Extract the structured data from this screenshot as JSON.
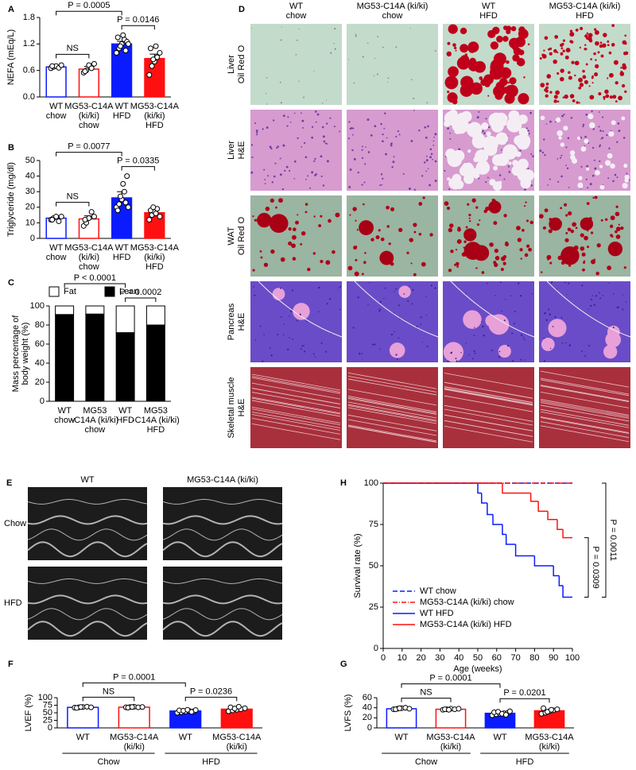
{
  "chart_data": [
    {
      "type": "bar",
      "panel": "A",
      "ylabel": "NEFA (mEq/L)",
      "categories": [
        [
          "WT",
          "chow"
        ],
        [
          "MG53-C14A",
          "(ki/ki)",
          "chow"
        ],
        [
          "WT",
          "HFD"
        ],
        [
          "MG53-C14A",
          "(ki/ki)",
          "HFD"
        ]
      ],
      "values": [
        0.68,
        0.63,
        1.2,
        0.87
      ],
      "errors": [
        0.03,
        0.06,
        0.06,
        0.1
      ],
      "points": [
        [
          0.65,
          0.68,
          0.7,
          0.66,
          0.72,
          0.7
        ],
        [
          0.55,
          0.6,
          0.72,
          0.65,
          0.75,
          0.58
        ],
        [
          1.0,
          1.1,
          1.2,
          1.3,
          1.25,
          1.35,
          1.15,
          1.4,
          1.05,
          1.2
        ],
        [
          0.5,
          0.7,
          0.8,
          0.9,
          1.0,
          1.1,
          0.85,
          1.15
        ]
      ],
      "fills": [
        "#ffffff",
        "#ffffff",
        "#0a1cff",
        "#ff1010"
      ],
      "edges": [
        "#0a1cff",
        "#ff1010",
        "#0a1cff",
        "#ff1010"
      ],
      "ylim": [
        0,
        1.8
      ],
      "yticks": [
        {
          "value": 0,
          "label": "0.0"
        },
        0.6,
        1.2,
        1.8
      ],
      "brackets": [
        {
          "from": 0,
          "to": 2,
          "label": "P = 0.0005"
        },
        {
          "from": 0,
          "to": 1,
          "label": "NS"
        },
        {
          "from": 2,
          "to": 3,
          "label": "P = 0.0146"
        }
      ]
    },
    {
      "type": "bar",
      "panel": "B",
      "ylabel": "Triglyceride (mg/dl)",
      "categories": [
        [
          "WT",
          "chow"
        ],
        [
          "MG53-C14A",
          "(ki/ki)",
          "chow"
        ],
        [
          "WT",
          "HFD"
        ],
        [
          "MG53-C14A",
          "(ki/ki)",
          "HFD"
        ]
      ],
      "values": [
        13,
        12.5,
        26,
        16.5
      ],
      "errors": [
        1,
        2,
        4,
        2
      ],
      "points": [
        [
          12,
          13,
          14,
          11,
          14,
          12
        ],
        [
          8,
          10,
          13,
          17,
          14,
          12
        ],
        [
          20,
          22,
          25,
          30,
          40,
          18,
          27,
          35,
          23,
          20
        ],
        [
          12,
          15,
          17,
          19,
          14,
          18,
          20,
          16
        ]
      ],
      "fills": [
        "#ffffff",
        "#ffffff",
        "#0a1cff",
        "#ff1010"
      ],
      "edges": [
        "#0a1cff",
        "#ff1010",
        "#0a1cff",
        "#ff1010"
      ],
      "ylim": [
        0,
        50
      ],
      "yticks": [
        0,
        10,
        20,
        30,
        40,
        50
      ],
      "brackets": [
        {
          "from": 0,
          "to": 2,
          "label": "P = 0.0077"
        },
        {
          "from": 0,
          "to": 1,
          "label": "NS"
        },
        {
          "from": 2,
          "to": 3,
          "label": "P = 0.0335"
        }
      ]
    },
    {
      "type": "stacked_bar",
      "panel": "C",
      "ylabel": [
        "Mass percentage of",
        "body weight (%)"
      ],
      "categories": [
        [
          "WT",
          "chow"
        ],
        [
          "MG53",
          "-C14A (ki/ki)",
          "chow"
        ],
        [
          "WT",
          "HFD"
        ],
        [
          "MG53",
          "-C14A (ki/ki)",
          "HFD"
        ]
      ],
      "series": [
        {
          "name": "Lean",
          "color": "#000000",
          "values": [
            91,
            91.5,
            72,
            80
          ],
          "errors": [
            0.8,
            0.8,
            2,
            1.5
          ]
        },
        {
          "name": "Fat",
          "color": "#ffffff",
          "values": [
            9,
            8.5,
            28,
            20
          ]
        }
      ],
      "ylim": [
        0,
        100
      ],
      "yticks": [
        0,
        20,
        40,
        60,
        80,
        100
      ],
      "brackets": [
        {
          "from": 0,
          "to": 2,
          "label": "P < 0.0001"
        },
        {
          "from": 2,
          "to": 3,
          "label": "P = 0.0002"
        }
      ]
    },
    {
      "type": "bar",
      "panel": "F",
      "ylabel": "LVEF (%)",
      "categories": [
        [
          "WT"
        ],
        [
          "MG53-C14A",
          "(ki/ki)"
        ],
        [
          "WT"
        ],
        [
          "MG53-C14A",
          "(ki/ki)"
        ]
      ],
      "groups": [
        {
          "label": "Chow",
          "from": 0,
          "to": 1
        },
        {
          "label": "HFD",
          "from": 2,
          "to": 3
        }
      ],
      "values": [
        68,
        68.5,
        56,
        62
      ],
      "errors": [
        1,
        1,
        2,
        3
      ],
      "points": [
        [
          67,
          68,
          69,
          70,
          68,
          66,
          69
        ],
        [
          68,
          69,
          70,
          68,
          69,
          67,
          69
        ],
        [
          50,
          52,
          54,
          56,
          55,
          58,
          57,
          60,
          53,
          59
        ],
        [
          55,
          58,
          60,
          62,
          65,
          68,
          64,
          70
        ]
      ],
      "fills": [
        "#ffffff",
        "#ffffff",
        "#0a1cff",
        "#ff1010"
      ],
      "edges": [
        "#0a1cff",
        "#ff1010",
        "#0a1cff",
        "#ff1010"
      ],
      "ylim": [
        0,
        100
      ],
      "yticks": [
        0,
        25,
        50,
        75,
        100
      ],
      "brackets": [
        {
          "from": 0,
          "to": 2,
          "label": "P = 0.0001"
        },
        {
          "from": 0,
          "to": 1,
          "label": "NS"
        },
        {
          "from": 2,
          "to": 3,
          "label": "P = 0.0236"
        }
      ]
    },
    {
      "type": "bar",
      "panel": "G",
      "ylabel": "LVFS (%)",
      "categories": [
        [
          "WT"
        ],
        [
          "MG53-C14A",
          "(ki/ki)"
        ],
        [
          "WT"
        ],
        [
          "MG53-C14A",
          "(ki/ki)"
        ]
      ],
      "groups": [
        {
          "label": "Chow",
          "from": 0,
          "to": 1
        },
        {
          "label": "HFD",
          "from": 2,
          "to": 3
        }
      ],
      "values": [
        38,
        37,
        29,
        34
      ],
      "errors": [
        1,
        1,
        1.5,
        2
      ],
      "points": [
        [
          37,
          38,
          39,
          40,
          38,
          37,
          39
        ],
        [
          36,
          37,
          38,
          37,
          38,
          37,
          36
        ],
        [
          25,
          27,
          28,
          29,
          30,
          31,
          32,
          28,
          26,
          33
        ],
        [
          28,
          30,
          33,
          35,
          37,
          39,
          32,
          36
        ]
      ],
      "fills": [
        "#ffffff",
        "#ffffff",
        "#0a1cff",
        "#ff1010"
      ],
      "edges": [
        "#0a1cff",
        "#ff1010",
        "#0a1cff",
        "#ff1010"
      ],
      "ylim": [
        0,
        60
      ],
      "yticks": [
        0,
        20,
        40,
        60
      ],
      "brackets": [
        {
          "from": 0,
          "to": 2,
          "label": "P = 0.0001"
        },
        {
          "from": 0,
          "to": 1,
          "label": "NS"
        },
        {
          "from": 2,
          "to": 3,
          "label": "P = 0.0201"
        }
      ]
    },
    {
      "type": "line",
      "panel": "H",
      "step": true,
      "xlabel": "Age (weeks)",
      "ylabel": "Survival rate (%)",
      "xlim": [
        0,
        100
      ],
      "xticks": [
        0,
        10,
        20,
        30,
        40,
        50,
        60,
        70,
        80,
        90,
        100
      ],
      "ylim": [
        0,
        100
      ],
      "yticks": [
        0,
        25,
        50,
        75,
        100
      ],
      "series": [
        {
          "name": "WT chow",
          "color": "#0a1cff",
          "dash": "6 3",
          "x": [
            0,
            100
          ],
          "values": [
            100,
            100
          ]
        },
        {
          "name": "MG53-C14A (ki/ki) chow",
          "color": "#ff1010",
          "dash": "6 2 1 2",
          "x": [
            0,
            100
          ],
          "values": [
            100,
            100
          ]
        },
        {
          "name": "WT HFD",
          "color": "#0a1cff",
          "x": [
            0,
            50,
            52,
            55,
            58,
            63,
            65,
            70,
            80,
            90,
            93,
            95,
            100
          ],
          "values": [
            100,
            94,
            88,
            81,
            75,
            69,
            63,
            56,
            50,
            44,
            38,
            31,
            31
          ]
        },
        {
          "name": "MG53-C14A (ki/ki) HFD",
          "color": "#ff1010",
          "x": [
            0,
            63,
            78,
            82,
            87,
            92,
            95,
            100
          ],
          "values": [
            100,
            94,
            89,
            83,
            78,
            72,
            67,
            67
          ]
        }
      ],
      "annotations": [
        {
          "text": "P = 0.0011",
          "series": [
            0,
            2
          ]
        },
        {
          "text": "P = 0.0309",
          "series": [
            3,
            2
          ]
        }
      ]
    }
  ],
  "figure_d": {
    "panel": "D",
    "columns": [
      [
        "WT",
        "chow"
      ],
      [
        "MG53-C14A (ki/ki)",
        "chow"
      ],
      [
        "WT",
        "HFD"
      ],
      [
        "MG53-C14A (ki/ki)",
        "HFD"
      ]
    ],
    "rows": [
      [
        "Liver",
        "Oil Red O"
      ],
      [
        "Liver",
        "H&E"
      ],
      [
        "WAT",
        "Oil Red O"
      ],
      [
        "Pancreas",
        "H&E"
      ],
      [
        "Skeletal muscle",
        "H&E"
      ]
    ]
  },
  "figure_e": {
    "panel": "E",
    "columns": [
      "WT",
      "MG53-C14A (ki/ki)"
    ],
    "rows": [
      "Chow",
      "HFD"
    ]
  }
}
